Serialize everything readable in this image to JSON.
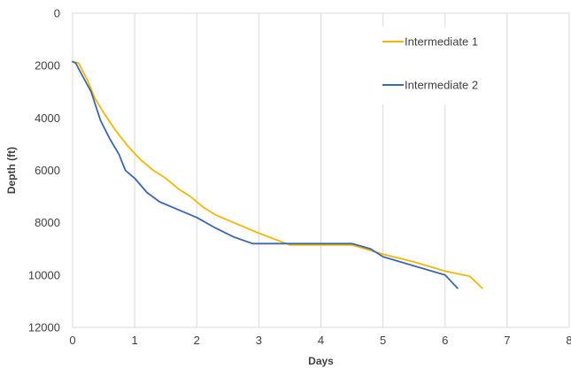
{
  "chart_data": {
    "type": "line",
    "xlabel": "Days",
    "ylabel": "Depth (ft)",
    "xlim": [
      0,
      8
    ],
    "ylim": [
      0,
      12000
    ],
    "y_inverted": true,
    "grid": "vertical",
    "legend_position": "top-right",
    "x_ticks": [
      "0",
      "1",
      "2",
      "3",
      "4",
      "5",
      "6",
      "7",
      "8"
    ],
    "y_ticks": [
      "0",
      "2000",
      "4000",
      "6000",
      "8000",
      "10000",
      "12000"
    ],
    "series": [
      {
        "name": "Intermediate 1",
        "color": "#F2B705",
        "points": [
          [
            0.0,
            1850
          ],
          [
            0.1,
            1900
          ],
          [
            0.15,
            2150
          ],
          [
            0.25,
            2600
          ],
          [
            0.35,
            3200
          ],
          [
            0.5,
            3800
          ],
          [
            0.7,
            4500
          ],
          [
            0.9,
            5100
          ],
          [
            1.1,
            5600
          ],
          [
            1.3,
            6000
          ],
          [
            1.5,
            6300
          ],
          [
            1.7,
            6700
          ],
          [
            1.9,
            7000
          ],
          [
            2.1,
            7400
          ],
          [
            2.3,
            7700
          ],
          [
            2.6,
            8000
          ],
          [
            3.0,
            8400
          ],
          [
            3.5,
            8850
          ],
          [
            4.5,
            8850
          ],
          [
            5.0,
            9200
          ],
          [
            5.5,
            9500
          ],
          [
            6.0,
            9850
          ],
          [
            6.4,
            10050
          ],
          [
            6.6,
            10500
          ]
        ]
      },
      {
        "name": "Intermediate 2",
        "color": "#3B66B0",
        "points": [
          [
            0.0,
            1850
          ],
          [
            0.05,
            1900
          ],
          [
            0.15,
            2350
          ],
          [
            0.3,
            3000
          ],
          [
            0.45,
            4100
          ],
          [
            0.6,
            4800
          ],
          [
            0.75,
            5400
          ],
          [
            0.85,
            6000
          ],
          [
            1.0,
            6300
          ],
          [
            1.2,
            6850
          ],
          [
            1.4,
            7200
          ],
          [
            1.7,
            7500
          ],
          [
            2.0,
            7800
          ],
          [
            2.3,
            8200
          ],
          [
            2.6,
            8550
          ],
          [
            2.9,
            8800
          ],
          [
            3.5,
            8800
          ],
          [
            4.5,
            8800
          ],
          [
            4.8,
            9000
          ],
          [
            5.0,
            9300
          ],
          [
            5.5,
            9650
          ],
          [
            6.0,
            10000
          ],
          [
            6.2,
            10500
          ]
        ]
      }
    ]
  }
}
